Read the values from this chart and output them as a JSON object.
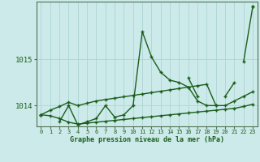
{
  "x": [
    0,
    1,
    2,
    3,
    4,
    5,
    6,
    7,
    8,
    9,
    10,
    11,
    12,
    13,
    14,
    15,
    16,
    17,
    18,
    19,
    20,
    21,
    22,
    23
  ],
  "bg_color": "#cceaea",
  "line_color": "#1a5e1a",
  "grid_color": "#a8d0d0",
  "tick_label_color": "#1a5e1a",
  "xlabel": "Graphe pression niveau de la mer (hPa)",
  "xlabel_color": "#1a5e1a",
  "ylim": [
    1013.55,
    1016.25
  ],
  "yticks": [
    1014,
    1015
  ],
  "xticks": [
    0,
    1,
    2,
    3,
    4,
    5,
    6,
    7,
    8,
    9,
    10,
    11,
    12,
    13,
    14,
    15,
    16,
    17,
    18,
    19,
    20,
    21,
    22,
    23
  ],
  "lin1_y": [
    1013.8,
    1013.9,
    1013.98,
    1014.07,
    1014.0,
    1014.05,
    1014.1,
    1014.13,
    1014.16,
    1014.19,
    1014.22,
    1014.25,
    1014.28,
    1014.31,
    1014.34,
    1014.37,
    1014.4,
    1014.43,
    1014.46,
    1014.0,
    1014.0,
    1014.1,
    1014.2,
    1014.3
  ],
  "lin2_y": [
    1013.8,
    1013.78,
    1013.72,
    1013.64,
    1013.6,
    1013.62,
    1013.64,
    1013.66,
    1013.68,
    1013.7,
    1013.72,
    1013.74,
    1013.76,
    1013.78,
    1013.8,
    1013.82,
    1013.84,
    1013.86,
    1013.88,
    1013.9,
    1013.92,
    1013.94,
    1013.98,
    1014.03
  ],
  "vol1_y": [
    1013.8,
    null,
    1013.65,
    1014.0,
    1013.58,
    1013.65,
    1013.72,
    1014.0,
    1013.75,
    1013.8,
    1014.0,
    1015.6,
    1015.05,
    1014.72,
    1014.55,
    1014.5,
    1014.4,
    1014.1,
    1014.0,
    1014.0,
    null,
    null,
    1014.95,
    1016.15
  ],
  "vol2_y": [
    null,
    null,
    null,
    null,
    null,
    null,
    null,
    null,
    null,
    null,
    null,
    null,
    null,
    null,
    null,
    null,
    1014.6,
    1014.2,
    null,
    null,
    1014.2,
    1014.5,
    null,
    1016.15
  ]
}
